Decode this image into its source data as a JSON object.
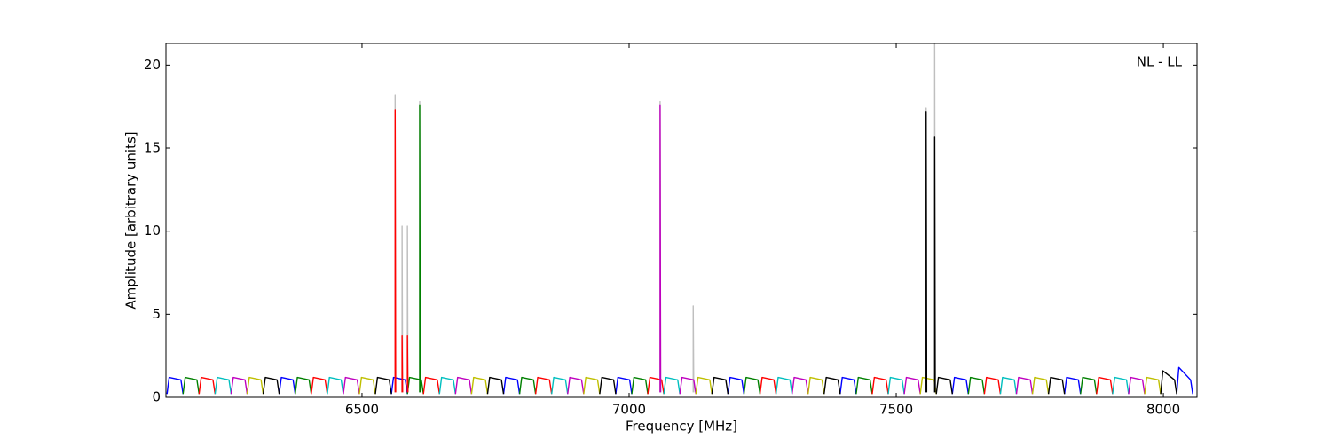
{
  "chart_data": {
    "type": "line",
    "xlabel": "Frequency [MHz]",
    "ylabel": "Amplitude [arbitrary units]",
    "annotation": "NL - LL",
    "xlim": [
      6133,
      8063
    ],
    "ylim": [
      0,
      21.3
    ],
    "xticks": [
      6500,
      7000,
      7500,
      8000
    ],
    "yticks": [
      0,
      5,
      10,
      15,
      20
    ],
    "series": [
      {
        "color": "#bfbfbf",
        "x": [
          6562,
          6562,
          6563,
          null,
          6575,
          6575,
          6576,
          null,
          6585,
          6585,
          6586,
          null,
          6608,
          6608,
          6609,
          null,
          7058,
          7058,
          7059,
          null,
          7120,
          7120,
          7121,
          null,
          7556,
          7556,
          7557,
          null,
          7572,
          7572,
          7573
        ],
        "values": [
          0.3,
          18.2,
          0.3,
          null,
          0.3,
          10.3,
          0.3,
          null,
          0.3,
          10.3,
          0.3,
          null,
          0.3,
          17.8,
          0.3,
          null,
          0.3,
          17.8,
          0.3,
          null,
          0.3,
          5.5,
          0.3,
          null,
          0.3,
          17.4,
          0.3,
          null,
          0.3,
          21.3,
          0.3
        ]
      },
      {
        "color": "#0000ff",
        "x": [
          6135,
          6139,
          6161,
          6165,
          null,
          6345,
          6349,
          6371,
          6375,
          null,
          6555,
          6559,
          6581,
          6585,
          null,
          6765,
          6769,
          6791,
          6795,
          null,
          6975,
          6979,
          7001,
          7005,
          null,
          7185,
          7189,
          7211,
          7215,
          null,
          7395,
          7399,
          7421,
          7425,
          null,
          7605,
          7609,
          7631,
          7635,
          null,
          7815,
          7819,
          7841,
          7845,
          null,
          8025,
          8029,
          8051,
          8055
        ],
        "values": [
          0.2,
          1.2,
          1.05,
          0.2,
          null,
          0.2,
          1.2,
          1.05,
          0.2,
          null,
          0.2,
          1.2,
          1.05,
          0.2,
          null,
          0.2,
          1.2,
          1.05,
          0.2,
          null,
          0.2,
          1.2,
          1.05,
          0.2,
          null,
          0.2,
          1.2,
          1.05,
          0.2,
          null,
          0.2,
          1.2,
          1.05,
          0.2,
          null,
          0.2,
          1.2,
          1.05,
          0.2,
          null,
          0.2,
          1.2,
          1.05,
          0.2,
          null,
          0.2,
          1.8,
          1.05,
          0.2
        ]
      },
      {
        "color": "#008000",
        "x": [
          6165,
          6169,
          6191,
          6195,
          null,
          6375,
          6379,
          6401,
          6405,
          null,
          6585,
          6589,
          6611,
          6615,
          null,
          6795,
          6799,
          6821,
          6825,
          null,
          7005,
          7009,
          7031,
          7035,
          null,
          7215,
          7219,
          7241,
          7245,
          null,
          7425,
          7429,
          7451,
          7455,
          null,
          7635,
          7639,
          7661,
          7665,
          null,
          7845,
          7849,
          7871,
          7875
        ],
        "values": [
          0.2,
          1.2,
          1.05,
          0.2,
          null,
          0.2,
          1.2,
          1.05,
          0.2,
          null,
          0.2,
          1.2,
          1.05,
          0.2,
          null,
          0.2,
          1.2,
          1.05,
          0.2,
          null,
          0.2,
          1.2,
          1.05,
          0.2,
          null,
          0.2,
          1.2,
          1.05,
          0.2,
          null,
          0.2,
          1.2,
          1.05,
          0.2,
          null,
          0.2,
          1.2,
          1.05,
          0.2,
          null,
          0.2,
          1.2,
          1.05,
          0.2
        ]
      },
      {
        "color": "#ff0000",
        "x": [
          6195,
          6199,
          6221,
          6225,
          null,
          6405,
          6409,
          6431,
          6435,
          null,
          6615,
          6619,
          6641,
          6645,
          null,
          6825,
          6829,
          6851,
          6855,
          null,
          7035,
          7039,
          7061,
          7065,
          null,
          7245,
          7249,
          7271,
          7275,
          null,
          7455,
          7459,
          7481,
          7485,
          null,
          7665,
          7669,
          7691,
          7695,
          null,
          7875,
          7879,
          7901,
          7905
        ],
        "values": [
          0.2,
          1.2,
          1.05,
          0.2,
          null,
          0.2,
          1.2,
          1.05,
          0.2,
          null,
          0.2,
          1.2,
          1.05,
          0.2,
          null,
          0.2,
          1.2,
          1.05,
          0.2,
          null,
          0.2,
          1.2,
          1.05,
          0.2,
          null,
          0.2,
          1.2,
          1.05,
          0.2,
          null,
          0.2,
          1.2,
          1.05,
          0.2,
          null,
          0.2,
          1.2,
          1.05,
          0.2,
          null,
          0.2,
          1.2,
          1.05,
          0.2
        ]
      },
      {
        "color": "#00bfbf",
        "x": [
          6225,
          6229,
          6251,
          6255,
          null,
          6435,
          6439,
          6461,
          6465,
          null,
          6645,
          6649,
          6671,
          6675,
          null,
          6855,
          6859,
          6881,
          6885,
          null,
          7065,
          7069,
          7091,
          7095,
          null,
          7275,
          7279,
          7301,
          7305,
          null,
          7485,
          7489,
          7511,
          7515,
          null,
          7695,
          7699,
          7721,
          7725,
          null,
          7905,
          7909,
          7931,
          7935
        ],
        "values": [
          0.2,
          1.2,
          1.05,
          0.2,
          null,
          0.2,
          1.2,
          1.05,
          0.2,
          null,
          0.2,
          1.2,
          1.05,
          0.2,
          null,
          0.2,
          1.2,
          1.05,
          0.2,
          null,
          0.2,
          1.2,
          1.05,
          0.2,
          null,
          0.2,
          1.2,
          1.05,
          0.2,
          null,
          0.2,
          1.2,
          1.05,
          0.2,
          null,
          0.2,
          1.2,
          1.05,
          0.2,
          null,
          0.2,
          1.2,
          1.05,
          0.2
        ]
      },
      {
        "color": "#bf00bf",
        "x": [
          6255,
          6259,
          6281,
          6285,
          null,
          6465,
          6469,
          6491,
          6495,
          null,
          6675,
          6679,
          6701,
          6705,
          null,
          6885,
          6889,
          6911,
          6915,
          null,
          7095,
          7099,
          7121,
          7125,
          null,
          7305,
          7309,
          7331,
          7335,
          null,
          7515,
          7519,
          7541,
          7545,
          null,
          7725,
          7729,
          7751,
          7755,
          null,
          7935,
          7939,
          7961,
          7965
        ],
        "values": [
          0.2,
          1.2,
          1.05,
          0.2,
          null,
          0.2,
          1.2,
          1.05,
          0.2,
          null,
          0.2,
          1.2,
          1.05,
          0.2,
          null,
          0.2,
          1.2,
          1.05,
          0.2,
          null,
          0.2,
          1.2,
          1.05,
          0.2,
          null,
          0.2,
          1.2,
          1.05,
          0.2,
          null,
          0.2,
          1.2,
          1.05,
          0.2,
          null,
          0.2,
          1.2,
          1.05,
          0.2,
          null,
          0.2,
          1.2,
          1.05,
          0.2
        ]
      },
      {
        "color": "#bfbf00",
        "x": [
          6285,
          6289,
          6311,
          6315,
          null,
          6495,
          6499,
          6521,
          6525,
          null,
          6705,
          6709,
          6731,
          6735,
          null,
          6915,
          6919,
          6941,
          6945,
          null,
          7125,
          7129,
          7151,
          7155,
          null,
          7335,
          7339,
          7361,
          7365,
          null,
          7545,
          7549,
          7571,
          7575,
          null,
          7755,
          7759,
          7781,
          7785,
          null,
          7965,
          7969,
          7991,
          7995
        ],
        "values": [
          0.2,
          1.2,
          1.05,
          0.2,
          null,
          0.2,
          1.2,
          1.05,
          0.2,
          null,
          0.2,
          1.2,
          1.05,
          0.2,
          null,
          0.2,
          1.2,
          1.05,
          0.2,
          null,
          0.2,
          1.2,
          1.05,
          0.2,
          null,
          0.2,
          1.2,
          1.05,
          0.2,
          null,
          0.2,
          1.2,
          1.05,
          0.2,
          null,
          0.2,
          1.2,
          1.05,
          0.2,
          null,
          0.2,
          1.2,
          1.05,
          0.2
        ]
      },
      {
        "color": "#000000",
        "x": [
          6315,
          6319,
          6341,
          6345,
          null,
          6525,
          6529,
          6551,
          6555,
          null,
          6735,
          6739,
          6761,
          6765,
          null,
          6945,
          6949,
          6971,
          6975,
          null,
          7155,
          7159,
          7181,
          7185,
          null,
          7365,
          7369,
          7391,
          7395,
          null,
          7575,
          7579,
          7601,
          7605,
          null,
          7785,
          7789,
          7811,
          7815,
          null,
          7995,
          7999,
          8021,
          8025
        ],
        "values": [
          0.2,
          1.2,
          1.05,
          0.2,
          null,
          0.2,
          1.2,
          1.05,
          0.2,
          null,
          0.2,
          1.2,
          1.05,
          0.2,
          null,
          0.2,
          1.2,
          1.05,
          0.2,
          null,
          0.2,
          1.2,
          1.05,
          0.2,
          null,
          0.2,
          1.2,
          1.05,
          0.2,
          null,
          0.2,
          1.2,
          1.05,
          0.2,
          null,
          0.2,
          1.2,
          1.05,
          0.2,
          null,
          0.2,
          1.6,
          1.05,
          0.2
        ]
      },
      {
        "color": "#ff0000",
        "x": [
          6562,
          6562,
          6563,
          null,
          6575,
          6575,
          6576,
          null,
          6585,
          6585,
          6586
        ],
        "values": [
          0.3,
          17.3,
          0.3,
          null,
          0.3,
          3.7,
          0.3,
          null,
          0.3,
          3.7,
          0.3
        ]
      },
      {
        "color": "#008000",
        "x": [
          6608,
          6608,
          6609
        ],
        "values": [
          0.3,
          17.6,
          0.3
        ]
      },
      {
        "color": "#bf00bf",
        "x": [
          7058,
          7058,
          7059
        ],
        "values": [
          0.3,
          17.6,
          0.3
        ]
      },
      {
        "color": "#000000",
        "x": [
          7556,
          7556,
          7557,
          null,
          7572,
          7572,
          7573
        ],
        "values": [
          0.3,
          17.2,
          0.3,
          null,
          0.3,
          15.7,
          0.3
        ]
      }
    ]
  }
}
